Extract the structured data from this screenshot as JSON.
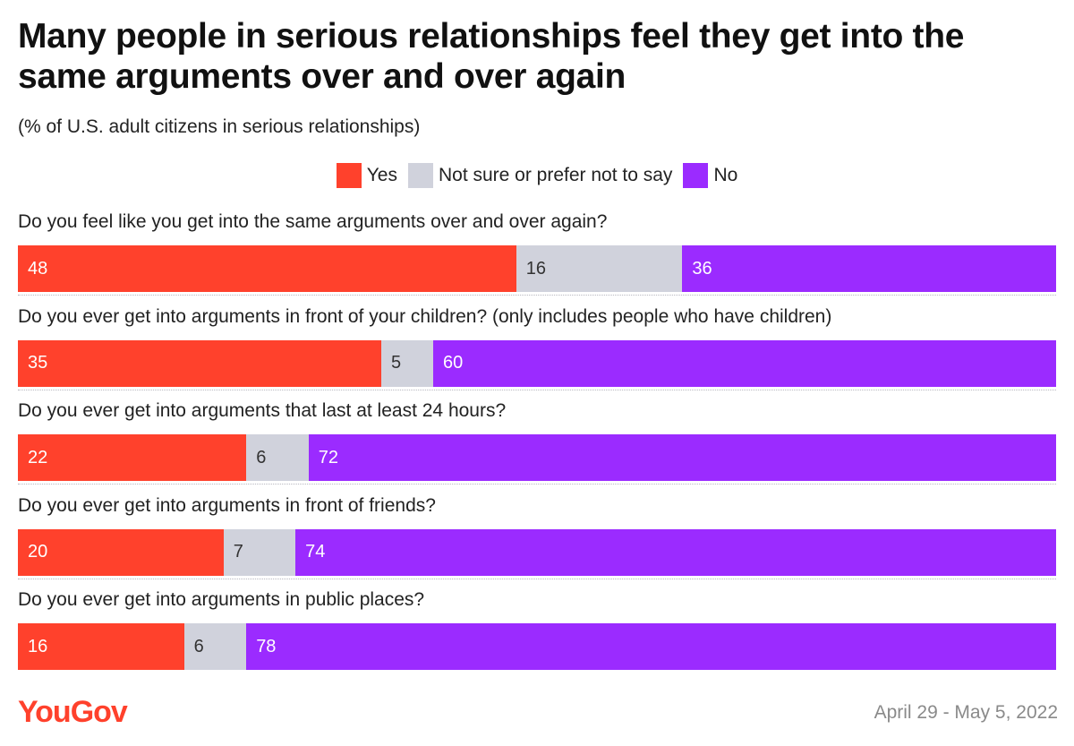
{
  "title": "Many people in serious relationships feel they get into the same arguments over and over again",
  "subtitle": "(% of U.S. adult citizens in serious relationships)",
  "legend": [
    {
      "label": "Yes",
      "color": "#ff412c"
    },
    {
      "label": "Not sure or prefer not to say",
      "color": "#d0d2dc"
    },
    {
      "label": "No",
      "color": "#9b2bff"
    }
  ],
  "chart_data": {
    "type": "bar",
    "orientation": "horizontal",
    "stacked": true,
    "title": "Many people in serious relationships feel they get into the same arguments over and over again",
    "subtitle": "(% of U.S. adult citizens in serious relationships)",
    "categories": [
      "Do you feel like you get into the same arguments over and over again?",
      "Do you ever get into arguments in front of your children? (only includes people who have children)",
      "Do you ever get into arguments that last at least 24 hours?",
      "Do you ever get into arguments in front of friends?",
      "Do you ever get into arguments in public places?"
    ],
    "series": [
      {
        "name": "Yes",
        "color": "#ff412c",
        "values": [
          48,
          35,
          22,
          20,
          16
        ]
      },
      {
        "name": "Not sure or prefer not to say",
        "color": "#d0d2dc",
        "values": [
          16,
          5,
          6,
          7,
          6
        ]
      },
      {
        "name": "No",
        "color": "#9b2bff",
        "values": [
          36,
          60,
          72,
          74,
          78
        ]
      }
    ],
    "legend_position": "top-center",
    "grid": false
  },
  "footer": {
    "logo": "YouGov",
    "date": "April 29 - May 5, 2022"
  }
}
